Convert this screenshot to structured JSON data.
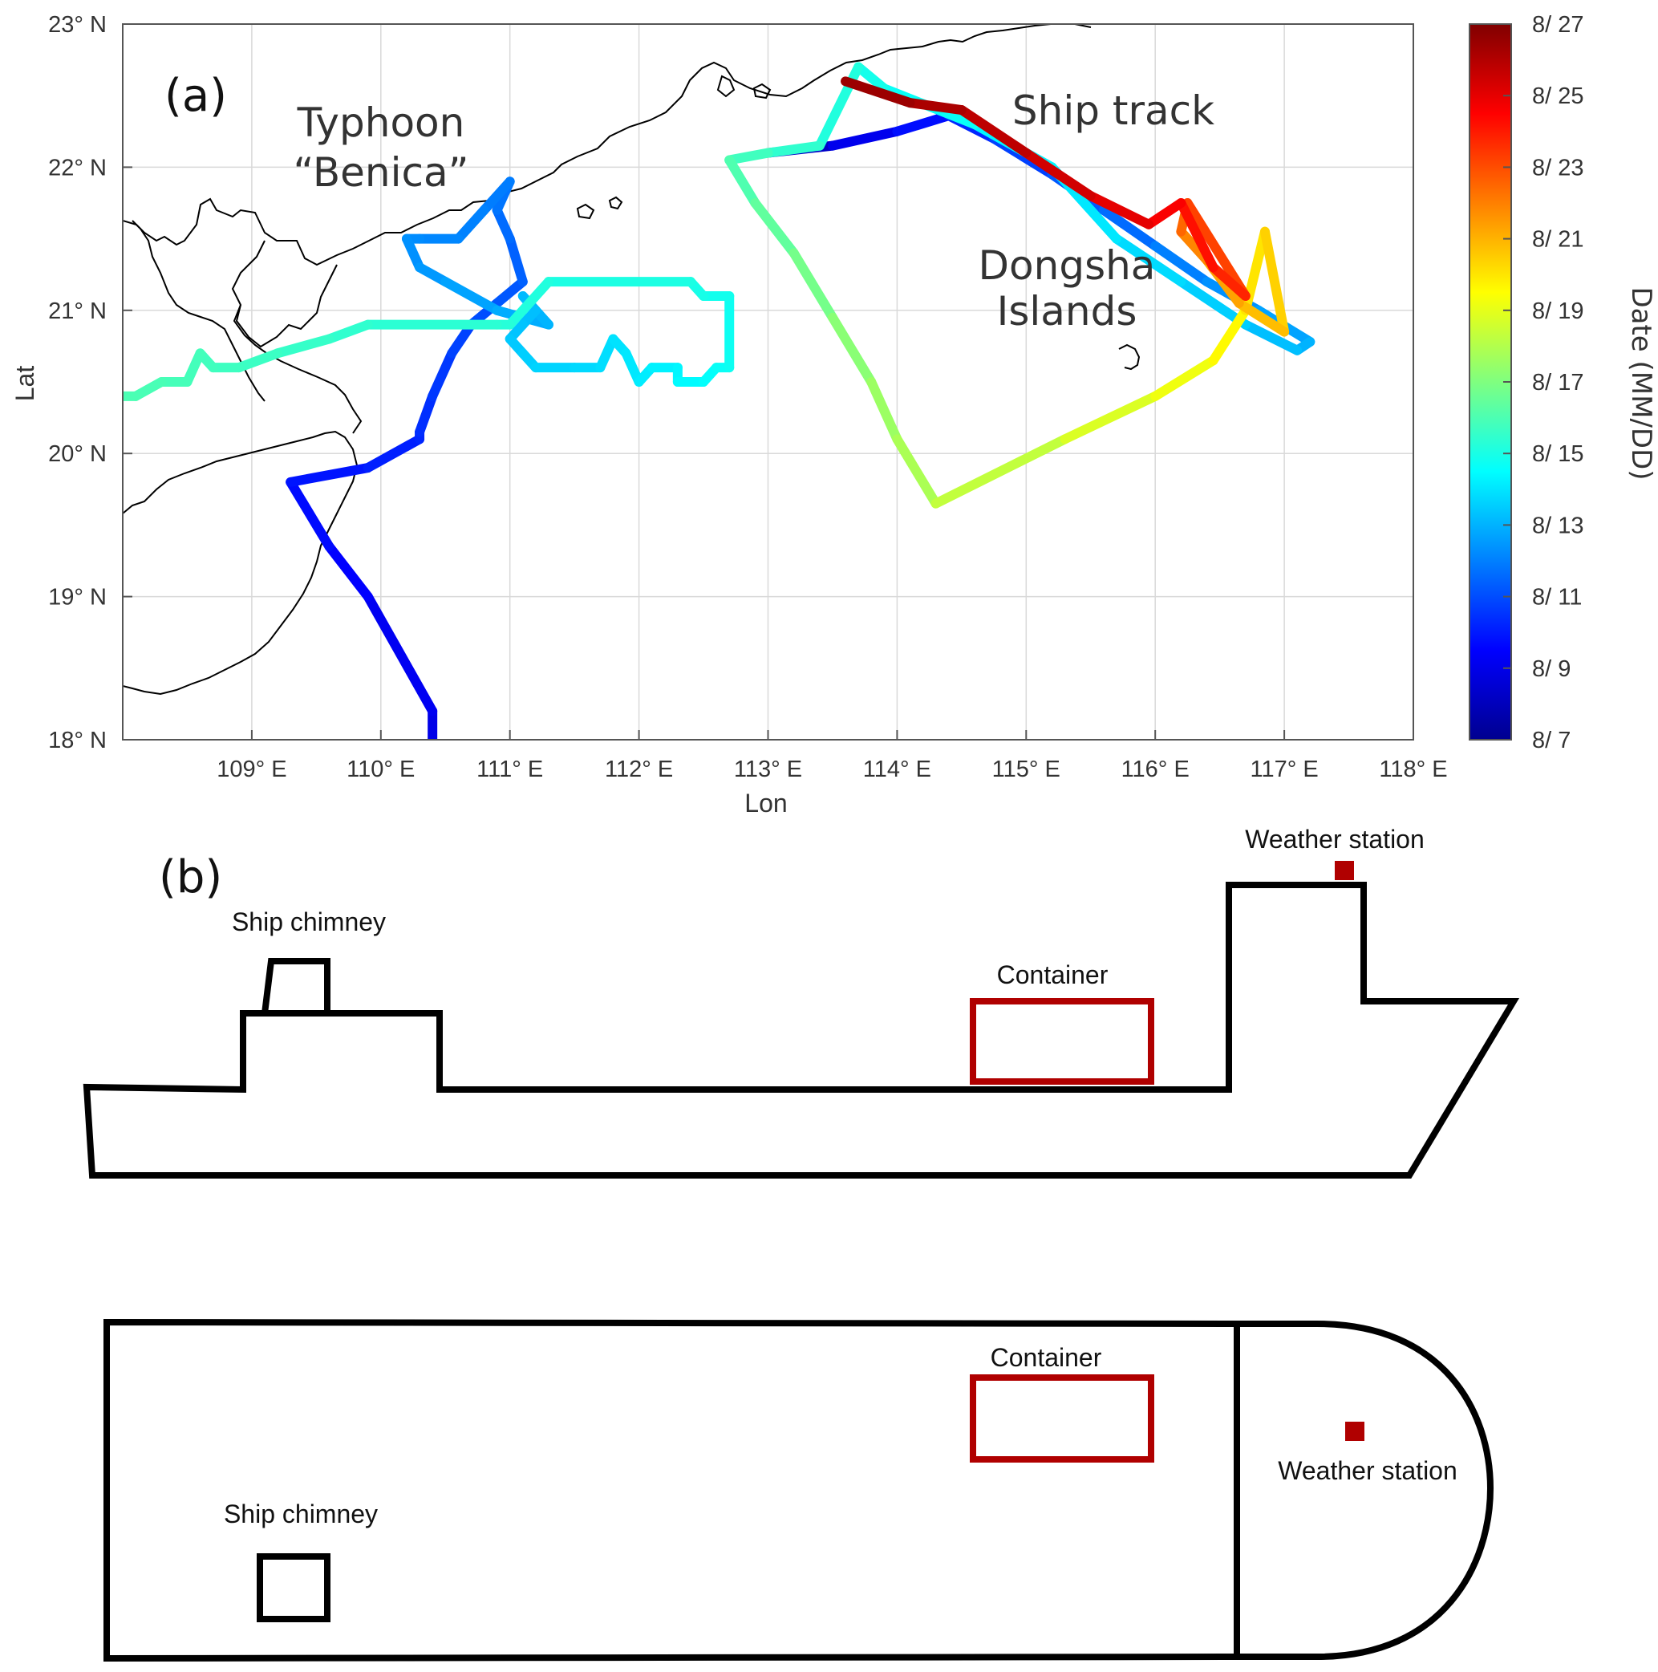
{
  "chart_data": {
    "type": "line",
    "panel_label": "(a)",
    "xlabel": "Lon",
    "ylabel": "Lat",
    "xlim": [
      108,
      118
    ],
    "ylim": [
      18,
      23
    ],
    "grid": true,
    "x_ticks": [
      {
        "value": 109,
        "label": "109° E"
      },
      {
        "value": 110,
        "label": "110° E"
      },
      {
        "value": 111,
        "label": "111° E"
      },
      {
        "value": 112,
        "label": "112° E"
      },
      {
        "value": 113,
        "label": "113° E"
      },
      {
        "value": 114,
        "label": "114° E"
      },
      {
        "value": 115,
        "label": "115° E"
      },
      {
        "value": 116,
        "label": "116° E"
      },
      {
        "value": 117,
        "label": "117° E"
      },
      {
        "value": 118,
        "label": "118° E"
      }
    ],
    "y_ticks": [
      {
        "value": 18,
        "label": "18° N"
      },
      {
        "value": 19,
        "label": "19° N"
      },
      {
        "value": 20,
        "label": "20° N"
      },
      {
        "value": 21,
        "label": "21° N"
      },
      {
        "value": 22,
        "label": "22° N"
      },
      {
        "value": 23,
        "label": "23° N"
      }
    ],
    "annotations": {
      "typhoon_line1": "Typhoon",
      "typhoon_line2": "“Benica”",
      "ship_track": "Ship track",
      "dongsha_line1": "Dongsha",
      "dongsha_line2": "Islands"
    },
    "colorbar": {
      "title": "Date (MM/DD)",
      "colormap": "jet",
      "range": [
        7,
        27
      ],
      "ticks": [
        {
          "value": 27,
          "label": "8/ 27"
        },
        {
          "value": 25,
          "label": "8/ 25"
        },
        {
          "value": 23,
          "label": "8/ 23"
        },
        {
          "value": 21,
          "label": "8/ 21"
        },
        {
          "value": 19,
          "label": "8/ 19"
        },
        {
          "value": 17,
          "label": "8/ 17"
        },
        {
          "value": 15,
          "label": "8/ 15"
        },
        {
          "value": 13,
          "label": "8/ 13"
        },
        {
          "value": 11,
          "label": "8/ 11"
        },
        {
          "value": 9,
          "label": "8/ 9"
        },
        {
          "value": 7,
          "label": "8/ 7"
        }
      ]
    },
    "typhoon_track": [
      [
        110.4,
        18.0,
        9.0
      ],
      [
        110.4,
        18.2,
        9.1
      ],
      [
        109.9,
        19.0,
        9.4
      ],
      [
        109.6,
        19.35,
        9.6
      ],
      [
        109.3,
        19.8,
        9.8
      ],
      [
        109.9,
        19.9,
        10.0
      ],
      [
        110.3,
        20.1,
        10.2
      ],
      [
        110.3,
        20.15,
        10.3
      ],
      [
        110.4,
        20.4,
        10.5
      ],
      [
        110.55,
        20.7,
        10.7
      ],
      [
        110.7,
        20.9,
        10.9
      ],
      [
        110.9,
        21.05,
        11.1
      ],
      [
        111.1,
        21.2,
        11.3
      ],
      [
        111.0,
        21.5,
        11.5
      ],
      [
        110.9,
        21.7,
        11.7
      ],
      [
        111.0,
        21.9,
        11.9
      ],
      [
        110.8,
        21.7,
        12.0
      ],
      [
        110.6,
        21.5,
        12.1
      ],
      [
        110.3,
        21.5,
        12.2
      ],
      [
        110.2,
        21.5,
        12.3
      ],
      [
        110.3,
        21.3,
        12.4
      ],
      [
        110.5,
        21.2,
        12.6
      ],
      [
        110.9,
        21.0,
        12.8
      ],
      [
        111.3,
        20.9,
        13.0
      ],
      [
        111.1,
        21.1,
        13.1
      ],
      [
        111.2,
        21.0,
        13.2
      ],
      [
        111.1,
        20.9,
        13.3
      ],
      [
        111.0,
        20.8,
        13.4
      ],
      [
        111.1,
        20.7,
        13.5
      ],
      [
        111.2,
        20.6,
        13.6
      ],
      [
        111.5,
        20.6,
        13.7
      ],
      [
        111.7,
        20.6,
        13.8
      ],
      [
        111.8,
        20.8,
        13.9
      ],
      [
        111.9,
        20.7,
        14.0
      ],
      [
        112.0,
        20.5,
        14.1
      ],
      [
        112.1,
        20.6,
        14.2
      ],
      [
        112.3,
        20.6,
        14.3
      ],
      [
        112.3,
        20.5,
        14.4
      ],
      [
        112.5,
        20.5,
        14.5
      ],
      [
        112.6,
        20.6,
        14.6
      ],
      [
        112.7,
        20.6,
        14.7
      ],
      [
        112.7,
        21.1,
        14.8
      ],
      [
        112.5,
        21.1,
        14.9
      ],
      [
        112.4,
        21.2,
        15.0
      ],
      [
        111.3,
        21.2,
        15.1
      ],
      [
        111.0,
        20.9,
        15.2
      ],
      [
        110.9,
        20.9,
        15.3
      ],
      [
        109.9,
        20.9,
        15.4
      ],
      [
        109.6,
        20.8,
        15.5
      ],
      [
        109.2,
        20.7,
        15.6
      ],
      [
        108.9,
        20.6,
        15.7
      ],
      [
        108.7,
        20.6,
        15.75
      ],
      [
        108.6,
        20.7,
        15.8
      ],
      [
        108.5,
        20.5,
        15.85
      ],
      [
        108.3,
        20.5,
        15.9
      ],
      [
        108.1,
        20.4,
        15.95
      ],
      [
        108.0,
        20.4,
        16.0
      ]
    ],
    "ship_track": [
      [
        113.0,
        22.1,
        8.0
      ],
      [
        113.5,
        22.15,
        8.8
      ],
      [
        114.0,
        22.25,
        9.5
      ],
      [
        114.4,
        22.36,
        10.0
      ],
      [
        114.75,
        22.2,
        10.5
      ],
      [
        115.2,
        21.95,
        11.0
      ],
      [
        115.6,
        21.7,
        11.4
      ],
      [
        116.0,
        21.45,
        11.8
      ],
      [
        116.4,
        21.2,
        12.2
      ],
      [
        116.8,
        21.0,
        12.5
      ],
      [
        117.2,
        20.78,
        12.9
      ],
      [
        117.1,
        20.72,
        13.1
      ],
      [
        116.7,
        20.9,
        13.4
      ],
      [
        116.2,
        21.2,
        13.7
      ],
      [
        115.7,
        21.5,
        13.9
      ],
      [
        115.2,
        22.0,
        14.2
      ],
      [
        114.6,
        22.3,
        14.5
      ],
      [
        113.9,
        22.55,
        14.8
      ],
      [
        113.7,
        22.7,
        15.0
      ],
      [
        113.4,
        22.15,
        15.3
      ],
      [
        113.0,
        22.1,
        15.6
      ],
      [
        112.7,
        22.05,
        15.9
      ],
      [
        112.9,
        21.75,
        16.2
      ],
      [
        113.2,
        21.4,
        16.6
      ],
      [
        113.5,
        20.95,
        17.0
      ],
      [
        113.8,
        20.5,
        17.4
      ],
      [
        114.0,
        20.1,
        17.7
      ],
      [
        114.3,
        19.65,
        18.0
      ],
      [
        115.3,
        20.1,
        18.6
      ],
      [
        116.0,
        20.4,
        19.0
      ],
      [
        116.45,
        20.65,
        19.4
      ],
      [
        116.7,
        21.0,
        19.8
      ],
      [
        116.85,
        21.55,
        20.2
      ],
      [
        117.0,
        20.85,
        20.6
      ],
      [
        116.65,
        21.05,
        21.0
      ],
      [
        116.4,
        21.35,
        21.6
      ],
      [
        116.2,
        21.55,
        22.2
      ],
      [
        116.25,
        21.75,
        22.8
      ],
      [
        116.7,
        21.1,
        23.6
      ],
      [
        116.45,
        21.3,
        24.0
      ],
      [
        116.2,
        21.75,
        24.4
      ],
      [
        115.95,
        21.6,
        24.8
      ],
      [
        115.5,
        21.8,
        25.2
      ],
      [
        115.0,
        22.1,
        25.6
      ],
      [
        114.5,
        22.4,
        26.0
      ],
      [
        114.1,
        22.45,
        26.3
      ],
      [
        113.6,
        22.6,
        26.6
      ]
    ]
  },
  "diagram": {
    "panel_label": "(b)",
    "side_view": {
      "chimney_label": "Ship chimney",
      "container_label": "Container",
      "station_label": "Weather station"
    },
    "top_view": {
      "chimney_label": "Ship chimney",
      "container_label": "Container",
      "station_label": "Weather station"
    },
    "colors": {
      "outline": "#000000",
      "container": "#b00000",
      "station": "#b00000"
    }
  }
}
